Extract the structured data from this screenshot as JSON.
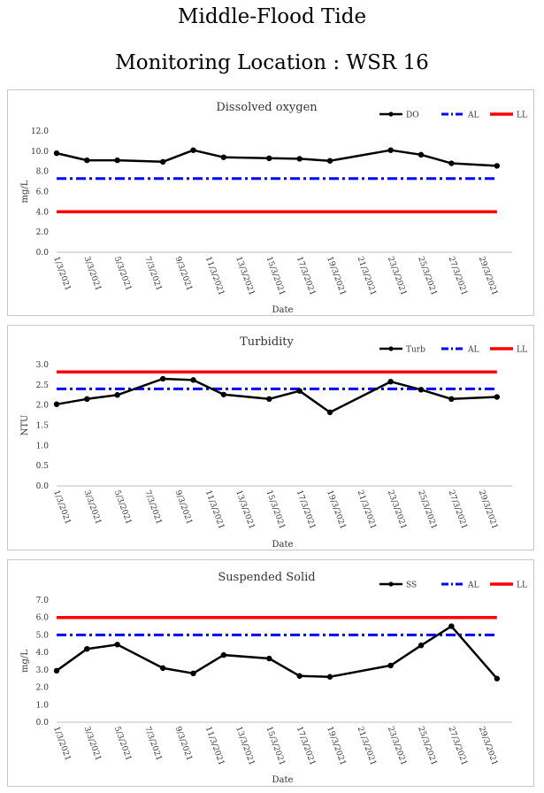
{
  "page": {
    "title": "Middle-Flood Tide",
    "subtitle": "Monitoring Location : WSR 16"
  },
  "chart_data": [
    {
      "type": "line",
      "title": "Dissolved oxygen",
      "xlabel": "Date",
      "ylabel": "mg/L",
      "ylim": [
        0,
        12
      ],
      "ytick_step": 2,
      "ytick_decimals": 1,
      "x_range": [
        1,
        31
      ],
      "tick_labels": [
        "1/3/2021",
        "3/3/2021",
        "5/3/2021",
        "7/3/2021",
        "9/3/2021",
        "11/3/2021",
        "13/3/2021",
        "15/3/2021",
        "17/3/2021",
        "19/3/2021",
        "21/3/2021",
        "23/3/2021",
        "25/3/2021",
        "27/3/2021",
        "29/3/2021"
      ],
      "grid": false,
      "legend": "top-right",
      "series": [
        {
          "name": "DO",
          "style": "solid-marker",
          "color": "#000000",
          "x": [
            1,
            3,
            5,
            8,
            10,
            12,
            15,
            17,
            19,
            23,
            25,
            27,
            30
          ],
          "y": [
            9.8,
            9.1,
            9.1,
            8.95,
            10.1,
            9.4,
            9.3,
            9.25,
            9.05,
            10.1,
            9.65,
            8.8,
            8.55
          ]
        },
        {
          "name": "AL",
          "style": "dashdot",
          "color": "#0000ff",
          "x": [
            1,
            30
          ],
          "y": [
            7.3,
            7.3
          ]
        },
        {
          "name": "LL",
          "style": "solid",
          "color": "#ff0000",
          "x": [
            1,
            30
          ],
          "y": [
            4.0,
            4.0
          ]
        }
      ]
    },
    {
      "type": "line",
      "title": "Turbidity",
      "xlabel": "Date",
      "ylabel": "NTU",
      "ylim": [
        0,
        3
      ],
      "ytick_step": 0.5,
      "ytick_decimals": 1,
      "x_range": [
        1,
        31
      ],
      "tick_labels": [
        "1/3/2021",
        "3/3/2021",
        "5/3/2021",
        "7/3/2021",
        "9/3/2021",
        "11/3/2021",
        "13/3/2021",
        "15/3/2021",
        "17/3/2021",
        "19/3/2021",
        "21/3/2021",
        "23/3/2021",
        "25/3/2021",
        "27/3/2021",
        "29/3/2021"
      ],
      "grid": false,
      "legend": "top-right",
      "series": [
        {
          "name": "Turb",
          "style": "solid-marker",
          "color": "#000000",
          "x": [
            1,
            3,
            5,
            8,
            10,
            12,
            15,
            17,
            19,
            23,
            25,
            27,
            30
          ],
          "y": [
            2.02,
            2.15,
            2.25,
            2.65,
            2.62,
            2.26,
            2.15,
            2.35,
            1.82,
            2.58,
            2.38,
            2.15,
            2.2
          ]
        },
        {
          "name": "AL",
          "style": "dashdot",
          "color": "#0000ff",
          "x": [
            1,
            30
          ],
          "y": [
            2.4,
            2.4
          ]
        },
        {
          "name": "LL",
          "style": "solid",
          "color": "#ff0000",
          "x": [
            1,
            30
          ],
          "y": [
            2.82,
            2.82
          ]
        }
      ]
    },
    {
      "type": "line",
      "title": "Suspended Solid",
      "xlabel": "Date",
      "ylabel": "mg/L",
      "ylim": [
        0,
        7
      ],
      "ytick_step": 1,
      "ytick_decimals": 1,
      "x_range": [
        1,
        31
      ],
      "tick_labels": [
        "1/3/2021",
        "3/3/2021",
        "5/3/2021",
        "7/3/2021",
        "9/3/2021",
        "11/3/2021",
        "13/3/2021",
        "15/3/2021",
        "17/3/2021",
        "19/3/2021",
        "21/3/2021",
        "23/3/2021",
        "25/3/2021",
        "27/3/2021",
        "29/3/2021"
      ],
      "grid": false,
      "legend": "top-right",
      "series": [
        {
          "name": "SS",
          "style": "solid-marker",
          "color": "#000000",
          "x": [
            1,
            3,
            5,
            8,
            10,
            12,
            15,
            17,
            19,
            23,
            25,
            27,
            30
          ],
          "y": [
            2.95,
            4.2,
            4.45,
            3.1,
            2.8,
            3.85,
            3.65,
            2.65,
            2.6,
            3.25,
            4.4,
            5.5,
            2.5
          ]
        },
        {
          "name": "AL",
          "style": "dashdot",
          "color": "#0000ff",
          "x": [
            1,
            30
          ],
          "y": [
            5.0,
            5.0
          ]
        },
        {
          "name": "LL",
          "style": "solid",
          "color": "#ff0000",
          "x": [
            1,
            30
          ],
          "y": [
            6.0,
            6.0
          ]
        }
      ]
    }
  ]
}
